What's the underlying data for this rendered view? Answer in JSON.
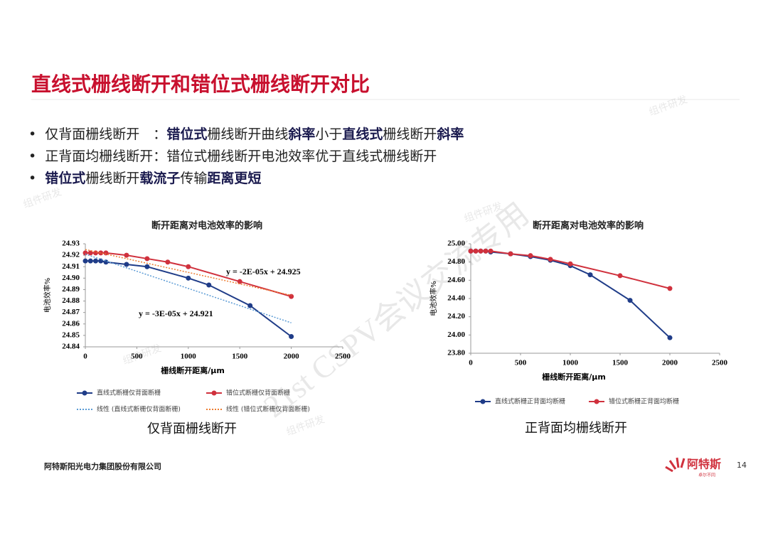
{
  "header": {
    "title": "直线式栅线断开和错位式栅线断开对比"
  },
  "bullets": [
    [
      {
        "text": "仅背面栅线断开　：",
        "bold": false
      },
      {
        "text": "错位式",
        "bold": true
      },
      {
        "text": "栅线断开曲线",
        "bold": false
      },
      {
        "text": "斜率",
        "bold": true
      },
      {
        "text": "小于",
        "bold": false
      },
      {
        "text": "直线式",
        "bold": true
      },
      {
        "text": "栅线断开",
        "bold": false
      },
      {
        "text": "斜率",
        "bold": true
      }
    ],
    [
      {
        "text": "正背面均栅线断开：错位式栅线断开电池效率优于直线式栅线断开",
        "bold": false
      }
    ],
    [
      {
        "text": "错位式",
        "bold": true
      },
      {
        "text": "栅线断开",
        "bold": false
      },
      {
        "text": "载流子",
        "bold": true
      },
      {
        "text": "传输",
        "bold": false
      },
      {
        "text": "距离更短",
        "bold": true
      }
    ]
  ],
  "chart_data": [
    {
      "type": "line",
      "title": "断开距离对电池效率的影响",
      "x_label": "栅线断开距离/μm",
      "y_label": "电池效率%",
      "caption": "仅背面栅线断开",
      "xlim": [
        0,
        2500
      ],
      "xticks": [
        0,
        500,
        1000,
        1500,
        2000,
        2500
      ],
      "ylim": [
        24.84,
        24.93
      ],
      "yticks": [
        24.84,
        24.85,
        24.86,
        24.87,
        24.88,
        24.89,
        {
          "value": 24.9,
          "label": "24.90"
        },
        24.91,
        24.92,
        24.93
      ],
      "series": [
        {
          "name": "直线式断栅仅背面断栅",
          "color": "#1f3c88",
          "line_style": "solid",
          "marker": true,
          "x": [
            0,
            50,
            100,
            150,
            200,
            400,
            600,
            1000,
            1200,
            1600,
            2000
          ],
          "values": [
            24.915,
            24.915,
            24.915,
            24.915,
            24.914,
            24.912,
            24.91,
            24.9,
            24.894,
            24.876,
            24.849
          ]
        },
        {
          "name": "错位式断栅仅背面断栅",
          "color": "#d0313d",
          "line_style": "solid",
          "marker": true,
          "x": [
            0,
            50,
            100,
            150,
            200,
            400,
            600,
            800,
            1000,
            1500,
            2000
          ],
          "values": [
            24.922,
            24.922,
            24.922,
            24.922,
            24.922,
            24.92,
            24.917,
            24.914,
            24.91,
            24.897,
            24.884
          ]
        },
        {
          "name": "线性 (直线式断栅仅背面断栅)",
          "color": "#5b9bd5",
          "line_style": "dotted",
          "marker": false,
          "x": [
            0,
            2000
          ],
          "values": [
            24.921,
            24.861
          ]
        },
        {
          "name": "线性 (错位式断栅仅背面断栅)",
          "color": "#ed7d31",
          "line_style": "dotted",
          "marker": false,
          "x": [
            0,
            2000
          ],
          "values": [
            24.925,
            24.885
          ]
        }
      ],
      "annotations": [
        "y = -2E-05x + 24.925",
        "y = -3E-05x + 24.921"
      ]
    },
    {
      "type": "line",
      "title": "断开距离对电池效率的影响",
      "x_label": "栅线断开距离/μm",
      "y_label": "电池效率%",
      "caption": "正背面均栅线断开",
      "xlim": [
        0,
        2500
      ],
      "xticks": [
        0,
        500,
        1000,
        1500,
        2000,
        2500
      ],
      "ylim": [
        23.8,
        25
      ],
      "yticks": [
        {
          "value": 23.8,
          "label": "23.80"
        },
        {
          "value": 24,
          "label": "24.00"
        },
        {
          "value": 24.2,
          "label": "24.20"
        },
        {
          "value": 24.4,
          "label": "24.40"
        },
        {
          "value": 24.6,
          "label": "24.60"
        },
        {
          "value": 24.8,
          "label": "24.80"
        },
        {
          "value": 25,
          "label": "25.00"
        }
      ],
      "series": [
        {
          "name": "直线式断栅正背面均断栅",
          "color": "#1f3c88",
          "line_style": "solid",
          "marker": true,
          "x": [
            0,
            50,
            100,
            150,
            200,
            400,
            600,
            800,
            1000,
            1200,
            1600,
            2000
          ],
          "values": [
            24.92,
            24.92,
            24.92,
            24.92,
            24.91,
            24.89,
            24.86,
            24.82,
            24.76,
            24.66,
            24.38,
            23.97
          ]
        },
        {
          "name": "错位式断栅正背面均断栅",
          "color": "#d0313d",
          "line_style": "solid",
          "marker": true,
          "x": [
            0,
            50,
            100,
            150,
            200,
            400,
            600,
            800,
            1000,
            1500,
            2000
          ],
          "values": [
            24.92,
            24.92,
            24.92,
            24.92,
            24.92,
            24.89,
            24.87,
            24.83,
            24.78,
            24.65,
            24.51
          ]
        }
      ]
    }
  ],
  "footer": {
    "company": "阿特斯阳光电力集团股份有限公司",
    "page": "14",
    "logo": "阿特斯",
    "tagline": "卓尔不同"
  },
  "watermarks": [
    "21st CSPV会议交流专用",
    "组件研发"
  ]
}
